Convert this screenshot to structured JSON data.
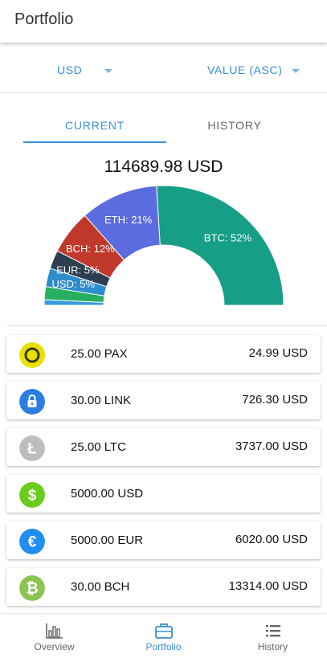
{
  "appbar": {
    "title": "Portfolio"
  },
  "selectors": {
    "currency": "USD",
    "sort": "VALUE (ASC)"
  },
  "tabs": [
    {
      "label": "CURRENT",
      "active": true
    },
    {
      "label": "HISTORY",
      "active": false
    }
  ],
  "total": {
    "label": "114689.98 USD"
  },
  "chart_data": {
    "type": "pie",
    "shape": "semi-donut",
    "slices": [
      {
        "label": "BTC: 52%",
        "value": 52,
        "color": "#179e86"
      },
      {
        "label": "ETH: 21%",
        "value": 21,
        "color": "#5b6ce0"
      },
      {
        "label": "BCH: 12%",
        "value": 12,
        "color": "#c0392b"
      },
      {
        "label": "EUR: 5%",
        "value": 5,
        "color": "#2c3e50"
      },
      {
        "label": "USD: 5%",
        "value": 5,
        "color": "#2f8ccb"
      },
      {
        "label": "",
        "value": 3.5,
        "color": "#27ae60"
      },
      {
        "label": "",
        "value": 1.5,
        "color": "#3a9bd9"
      }
    ]
  },
  "holdings": [
    {
      "amount": "25.00 PAX",
      "value": "24.99 USD",
      "icon": "pax-coin-icon",
      "color": "#e8e000",
      "glyph": "ring"
    },
    {
      "amount": "30.00 LINK",
      "value": "726.30 USD",
      "icon": "link-coin-icon",
      "color": "#2a7de1",
      "glyph": "lock"
    },
    {
      "amount": "25.00 LTC",
      "value": "3737.00 USD",
      "icon": "ltc-coin-icon",
      "color": "#bdbdbd",
      "glyph": "Ł"
    },
    {
      "amount": "5000.00 USD",
      "value": "",
      "icon": "usd-coin-icon",
      "color": "#6acd1b",
      "glyph": "$"
    },
    {
      "amount": "5000.00 EUR",
      "value": "6020.00 USD",
      "icon": "eur-coin-icon",
      "color": "#1f8ff0",
      "glyph": "€"
    },
    {
      "amount": "30.00 BCH",
      "value": "13314.00 USD",
      "icon": "bch-coin-icon",
      "color": "#8dc351",
      "glyph": "₿"
    }
  ],
  "bottom_nav": [
    {
      "label": "Overview",
      "icon": "bar-chart-icon",
      "active": false
    },
    {
      "label": "Portfolio",
      "icon": "briefcase-icon",
      "active": true
    },
    {
      "label": "History",
      "icon": "list-icon",
      "active": false
    }
  ],
  "colors": {
    "accent": "#3a8fd8",
    "inactive": "#666666"
  }
}
